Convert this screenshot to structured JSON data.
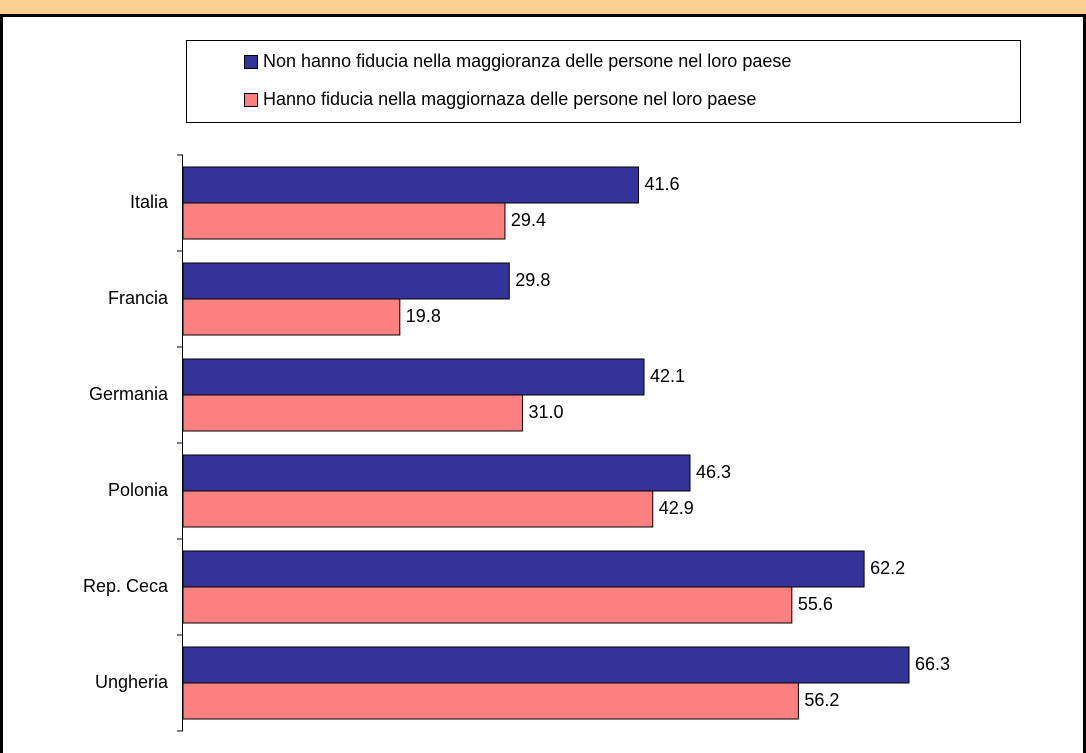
{
  "chart_data": {
    "type": "hbar",
    "categories": [
      "Italia",
      "Francia",
      "Germania",
      "Polonia",
      "Rep. Ceca",
      "Ungheria"
    ],
    "series": [
      {
        "name": "Non hanno fiducia nella maggioranza delle persone nel loro paese",
        "color": "#333399",
        "values": [
          41.6,
          29.8,
          42.1,
          46.3,
          62.2,
          66.3
        ],
        "value_labels": [
          "41.6",
          "29.8",
          "42.1",
          "46.3",
          "62.2",
          "66.3"
        ]
      },
      {
        "name": "Hanno fiducia nella maggiornaza delle persone nel loro paese",
        "color": "#ff8080",
        "values": [
          29.4,
          19.8,
          31.0,
          42.9,
          55.6,
          56.2
        ],
        "value_labels": [
          "29.4",
          "19.8",
          "31.0",
          "42.9",
          "55.6",
          "56.2"
        ]
      }
    ],
    "xlim": [
      0,
      80
    ]
  }
}
